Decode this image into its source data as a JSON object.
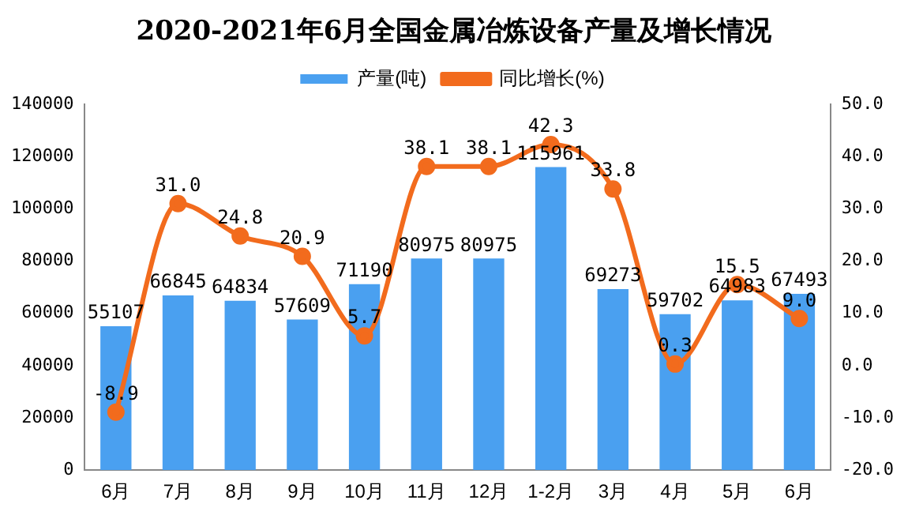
{
  "chart_data": {
    "type": "bar",
    "title": "2020-2021年6月全国金属冶炼设备产量及增长情况",
    "categories": [
      "6月",
      "7月",
      "8月",
      "9月",
      "10月",
      "11月",
      "12月",
      "1-2月",
      "3月",
      "4月",
      "5月",
      "6月"
    ],
    "series": [
      {
        "name": "产量(吨)",
        "color": "#4aa0f0",
        "values": [
          55107,
          66845,
          64834,
          57609,
          71190,
          80975,
          80975,
          115961,
          69273,
          59702,
          64983,
          67493
        ]
      },
      {
        "name": "同比增长(%)",
        "type": "line",
        "axis": "y2",
        "color": "#f26b1d",
        "marker": "circle",
        "values": [
          -8.9,
          31.0,
          24.8,
          20.9,
          5.7,
          38.1,
          38.1,
          42.3,
          33.8,
          0.3,
          15.5,
          9.0
        ],
        "value_labels": [
          "-8.9",
          "31.0",
          "24.8",
          "20.9",
          "5.7",
          "38.1",
          "38.1",
          "42.3",
          "33.8",
          "0.3",
          "15.5",
          "9.0"
        ]
      }
    ],
    "ylim": [
      0,
      140000
    ],
    "yticks": [
      0,
      20000,
      40000,
      60000,
      80000,
      100000,
      120000,
      140000
    ],
    "y2lim": [
      -20,
      50
    ],
    "y2ticks": [
      {
        "value": -20,
        "label": "-20.0"
      },
      {
        "value": -10,
        "label": "-10.0"
      },
      {
        "value": 0,
        "label": "0.0"
      },
      {
        "value": 10,
        "label": "10.0"
      },
      {
        "value": 20,
        "label": "20.0"
      },
      {
        "value": 30,
        "label": "30.0"
      },
      {
        "value": 40,
        "label": "40.0"
      },
      {
        "value": 50,
        "label": "50.0"
      }
    ],
    "data_labels": true,
    "grid": false,
    "legend": "top"
  }
}
